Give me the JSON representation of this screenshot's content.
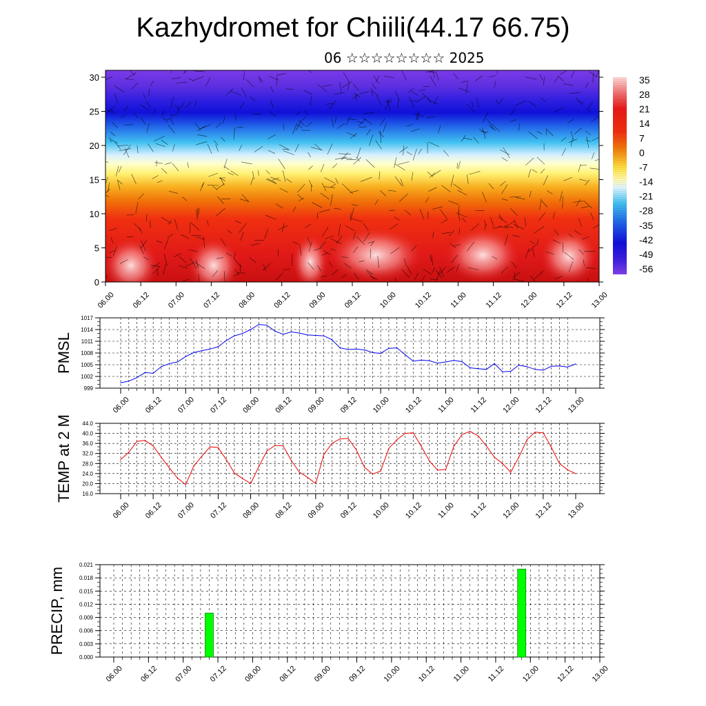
{
  "title": "Kazhydromet for Chiili(44.17 66.75)",
  "subtitle": "06 ☆☆☆☆☆☆☆☆ 2025",
  "colors": {
    "pmsl_line": "#0000ee",
    "temp_line": "#ee0000",
    "precip_bar": "#00ff00",
    "precip_bar_edge": "#008800"
  },
  "chart_data": [
    {
      "type": "heatmap",
      "name": "upper-air-cross-section",
      "x_tick_labels": [
        "06.00",
        "06.12",
        "07.00",
        "07.12",
        "08.00",
        "08.12",
        "09.00",
        "09.12",
        "10.00",
        "10.12",
        "11.00",
        "11.12",
        "12.00",
        "12.12",
        "13.00"
      ],
      "y_tick_labels": [
        "0",
        "5",
        "10",
        "15",
        "20",
        "25",
        "30"
      ],
      "ylim": [
        0,
        30
      ],
      "colorbar_labels": [
        "35",
        "28",
        "21",
        "14",
        "7",
        "0",
        "-7",
        "-14",
        "-21",
        "-28",
        "-35",
        "-42",
        "-49",
        "-56"
      ],
      "overlay": "wind streamlines"
    },
    {
      "type": "line",
      "ylabel": "PMSL",
      "ylim": [
        999,
        1017
      ],
      "y_tick_labels": [
        "1017",
        "1014",
        "1011",
        "1008",
        "1005",
        "1002",
        "999"
      ],
      "x_tick_labels": [
        "06.00",
        "06.12",
        "07.00",
        "07.12",
        "08.00",
        "08.12",
        "09.00",
        "09.12",
        "10.00",
        "10.12",
        "11.00",
        "11.12",
        "12.00",
        "12.12",
        "13.00"
      ],
      "step_hours": 3,
      "values": [
        1000.4,
        1000.8,
        1001.7,
        1003.0,
        1002.8,
        1004.5,
        1005.3,
        1005.7,
        1007.1,
        1008.1,
        1008.6,
        1009.0,
        1009.6,
        1011.2,
        1012.4,
        1013.0,
        1014.0,
        1015.3,
        1015.1,
        1013.6,
        1012.8,
        1013.4,
        1013.1,
        1012.6,
        1012.5,
        1012.4,
        1011.4,
        1009.3,
        1008.9,
        1009.0,
        1008.8,
        1008.1,
        1007.9,
        1009.2,
        1009.3,
        1007.6,
        1005.9,
        1006.2,
        1006.0,
        1005.4,
        1005.7,
        1006.1,
        1005.8,
        1004.2,
        1004.0,
        1003.8,
        1005.3,
        1003.2,
        1003.3,
        1004.9,
        1004.5,
        1003.8,
        1003.6,
        1004.6,
        1004.7,
        1004.4,
        1005.2
      ]
    },
    {
      "type": "line",
      "ylabel": "TEMP at 2 M",
      "ylim": [
        16,
        44
      ],
      "y_tick_labels": [
        "44.0",
        "40.0",
        "36.0",
        "32.0",
        "28.0",
        "24.0",
        "20.0",
        "16.0"
      ],
      "x_tick_labels": [
        "06.00",
        "06.12",
        "07.00",
        "07.12",
        "08.00",
        "08.12",
        "09.00",
        "09.12",
        "10.00",
        "10.12",
        "11.00",
        "11.12",
        "12.00",
        "12.12",
        "13.00"
      ],
      "step_hours": 3,
      "values": [
        29.5,
        32.5,
        36.8,
        37.2,
        35.0,
        30.5,
        26.2,
        22.2,
        19.6,
        27.0,
        31.0,
        34.6,
        34.4,
        29.5,
        24.2,
        22.0,
        20.0,
        26.8,
        33.0,
        35.2,
        35.0,
        29.2,
        24.5,
        22.5,
        20.0,
        31.5,
        36.0,
        37.8,
        38.0,
        33.5,
        26.5,
        23.8,
        25.0,
        34.0,
        37.5,
        40.0,
        40.2,
        34.8,
        29.0,
        25.4,
        25.6,
        34.8,
        39.5,
        40.8,
        39.0,
        35.0,
        30.5,
        28.0,
        24.5,
        30.5,
        37.5,
        40.5,
        40.2,
        34.5,
        28.0,
        25.5,
        24.0
      ]
    },
    {
      "type": "bar",
      "ylabel": "PRECIP, mm",
      "ylim": [
        0,
        0.021
      ],
      "y_tick_labels": [
        "0.021",
        "0.018",
        "0.015",
        "0.012",
        "0.009",
        "0.006",
        "0.003",
        "0.000"
      ],
      "x_tick_labels": [
        "06.00",
        "06.12",
        "07.00",
        "07.12",
        "08.00",
        "08.12",
        "09.00",
        "09.12",
        "10.00",
        "10.12",
        "11.00",
        "11.12",
        "12.00",
        "12.12",
        "13.00"
      ],
      "bars": [
        {
          "time": "07.09",
          "value": 0.01
        },
        {
          "time": "11.21",
          "value": 0.02
        }
      ]
    }
  ]
}
